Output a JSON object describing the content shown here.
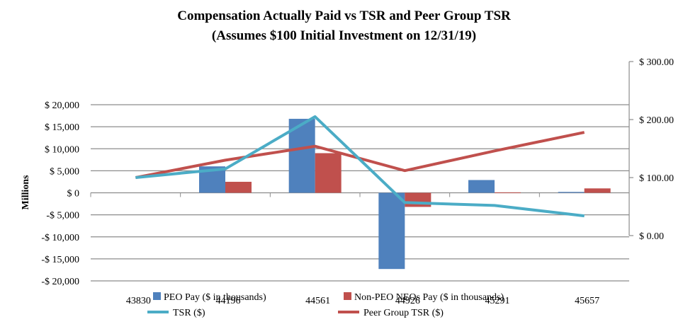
{
  "chart_data": {
    "type": "bar",
    "title": "Compensation Actually Paid vs TSR and Peer Group TSR",
    "subtitle": "(Assumes $100 Initial Investment on 12/31/19)",
    "ylabel": "Millions",
    "categories": [
      "43830",
      "44196",
      "44561",
      "44926",
      "45291",
      "45657"
    ],
    "y_left": {
      "ylim": [
        -20000,
        20000
      ],
      "tick_values": [
        20000,
        15000,
        10000,
        5000,
        0,
        -5000,
        -10000,
        -15000,
        -20000
      ],
      "tick_labels": [
        "$ 20,000",
        "$ 15,000",
        "$ 10,000",
        "$ 5,000",
        "$ 0",
        "-$ 5,000",
        "-$ 10,000",
        "-$ 15,000",
        "-$ 20,000"
      ]
    },
    "y_right": {
      "ylim": [
        0,
        300
      ],
      "tick_values": [
        300,
        200,
        100,
        0
      ],
      "tick_labels": [
        "$ 300.00",
        "$ 200.00",
        "$ 100.00",
        "$ 0.00"
      ]
    },
    "series": [
      {
        "name": "PEO Pay ($ in thousands)",
        "kind": "bar",
        "axis": "left",
        "color": "#4f81bd",
        "values": [
          0,
          6000,
          16800,
          -17300,
          2900,
          200
        ]
      },
      {
        "name": "Non-PEO NEOs Pay ($ in thousands)",
        "kind": "bar",
        "axis": "left",
        "color": "#c0504d",
        "values": [
          0,
          2500,
          9000,
          -3200,
          100,
          1000
        ]
      },
      {
        "name": "TSR ($)",
        "kind": "line",
        "axis": "right",
        "color": "#4bacc6",
        "values": [
          100,
          115,
          205,
          57,
          52,
          34
        ]
      },
      {
        "name": "Peer Group TSR ($)",
        "kind": "line",
        "axis": "right",
        "color": "#c0504d",
        "values": [
          100,
          130,
          154,
          112,
          146,
          178
        ]
      }
    ],
    "legend": {
      "position": "bottom"
    },
    "grid": true
  }
}
